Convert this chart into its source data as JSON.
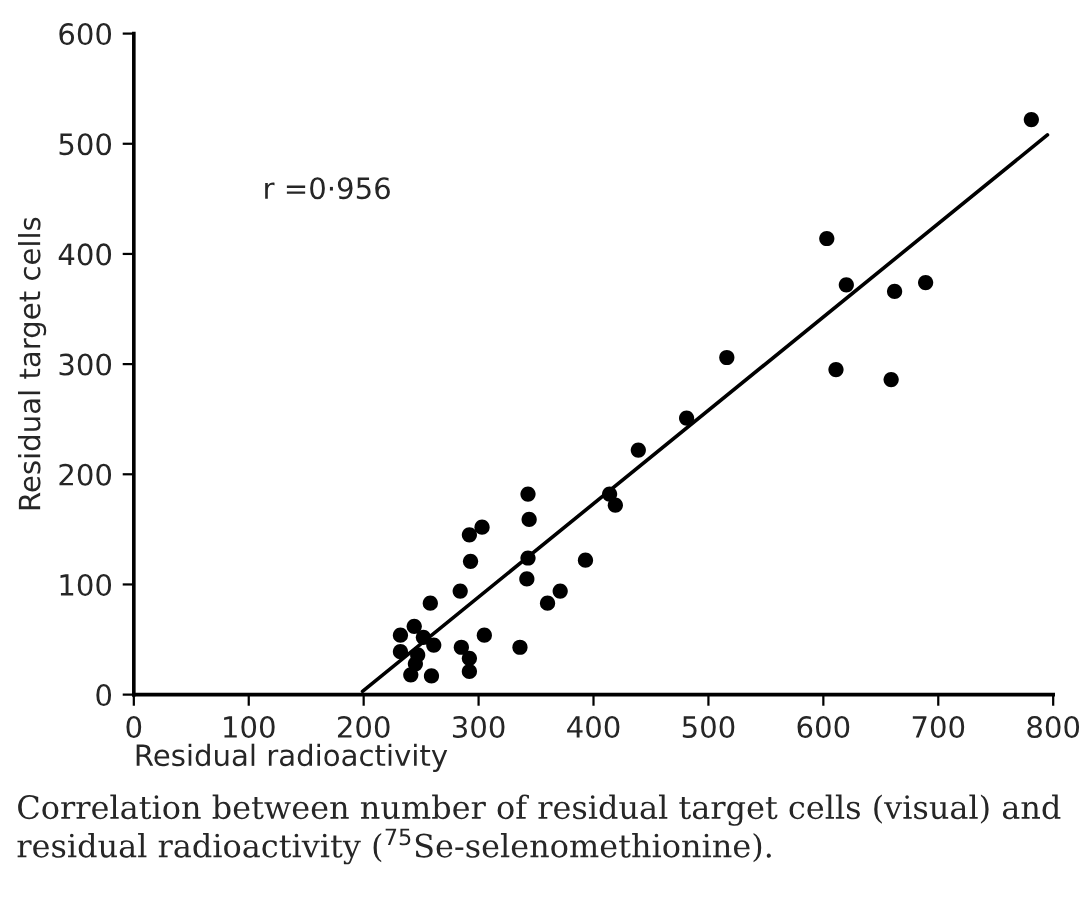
{
  "chart_data": {
    "type": "scatter",
    "xlabel": "Residual radioactivity",
    "ylabel": "Residual target cells",
    "annotations": [
      "r =0·956",
      "Correlation between number of residual target cells (visual) and residual radioactivity ($^{75}$Se-selenomethionine)."
    ],
    "series": [
      {
        "color": "#000000",
        "marker": "circle",
        "x": [
          781,
          603,
          620,
          662,
          689,
          611,
          659,
          516,
          481,
          439,
          414,
          419,
          343,
          344,
          343,
          342,
          393,
          371,
          360,
          336,
          303,
          292,
          293,
          284,
          258,
          305,
          285,
          292,
          292,
          259,
          261,
          244,
          252,
          232,
          232,
          247,
          245,
          241
        ],
        "values": [
          522,
          414,
          372,
          366,
          374,
          295,
          286,
          306,
          251,
          222,
          182,
          172,
          182,
          159,
          124,
          105,
          122,
          94,
          83,
          43,
          152,
          145,
          121,
          94,
          83,
          54,
          43,
          33,
          21,
          17,
          45,
          62,
          52,
          54,
          39,
          36,
          28,
          18
        ]
      },
      {
        "type": "line",
        "color": "#000000",
        "x": [
          199,
          795
        ],
        "values": [
          3,
          508
        ]
      }
    ],
    "xlim": [
      0,
      800
    ],
    "ylim": [
      0,
      600
    ],
    "xticks": [
      0,
      100,
      200,
      300,
      400,
      500,
      600,
      700,
      800
    ],
    "yticks": [
      0,
      100,
      200,
      300,
      400,
      500,
      600
    ],
    "grid": false,
    "legend": false
  }
}
